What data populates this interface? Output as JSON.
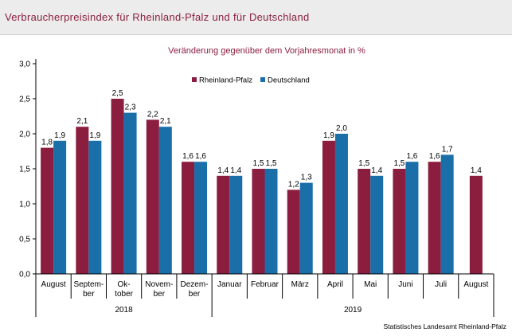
{
  "title": "Verbraucherpreisindex für Rheinland-Pfalz und für Deutschland",
  "chart_data": {
    "type": "bar",
    "subtitle": "Veränderung gegenüber dem Vorjahresmonat in %",
    "categories": [
      [
        "August"
      ],
      [
        "Septem-",
        "ber"
      ],
      [
        "Ok-",
        "tober"
      ],
      [
        "Novem-",
        "ber"
      ],
      [
        "Dezem-",
        "ber"
      ],
      [
        "Januar"
      ],
      [
        "Februar"
      ],
      [
        "März"
      ],
      [
        "April"
      ],
      [
        "Mai"
      ],
      [
        "Juni"
      ],
      [
        "Juli"
      ],
      [
        "August"
      ]
    ],
    "groups": [
      {
        "label": "2018",
        "start": 0,
        "end": 4
      },
      {
        "label": "2019",
        "start": 5,
        "end": 12
      }
    ],
    "series": [
      {
        "name": "Rheinland-Pfalz",
        "color": "#8b1e3f",
        "values": [
          1.8,
          2.1,
          2.5,
          2.2,
          1.6,
          1.4,
          1.5,
          1.2,
          1.9,
          1.5,
          1.5,
          1.6,
          1.4
        ],
        "labels": [
          "1,8",
          "2,1",
          "2,5",
          "2,2",
          "1,6",
          "1,4",
          "1,5",
          "1,2",
          "1,9",
          "1,5",
          "1,5",
          "1,6",
          "1,4"
        ]
      },
      {
        "name": "Deutschland",
        "color": "#1b6fa8",
        "values": [
          1.9,
          1.9,
          2.3,
          2.1,
          1.6,
          1.4,
          1.5,
          1.3,
          2.0,
          1.4,
          1.6,
          1.7,
          null
        ],
        "labels": [
          "1,9",
          "1,9",
          "2,3",
          "2,1",
          "1,6",
          "1,4",
          "1,5",
          "1,3",
          "2,0",
          "1,4",
          "1,6",
          "1,7",
          ""
        ]
      }
    ],
    "ylim": [
      0,
      3.0
    ],
    "yticks": [
      0,
      0.5,
      1.0,
      1.5,
      2.0,
      2.5,
      3.0
    ],
    "ytick_labels": [
      "0,0",
      "0,5",
      "1,0",
      "1,5",
      "2,0",
      "2,5",
      "3,0"
    ],
    "legend_position": "top-right",
    "grid": false,
    "source": "Statistisches Landesamt Rheinland-Pfalz"
  }
}
